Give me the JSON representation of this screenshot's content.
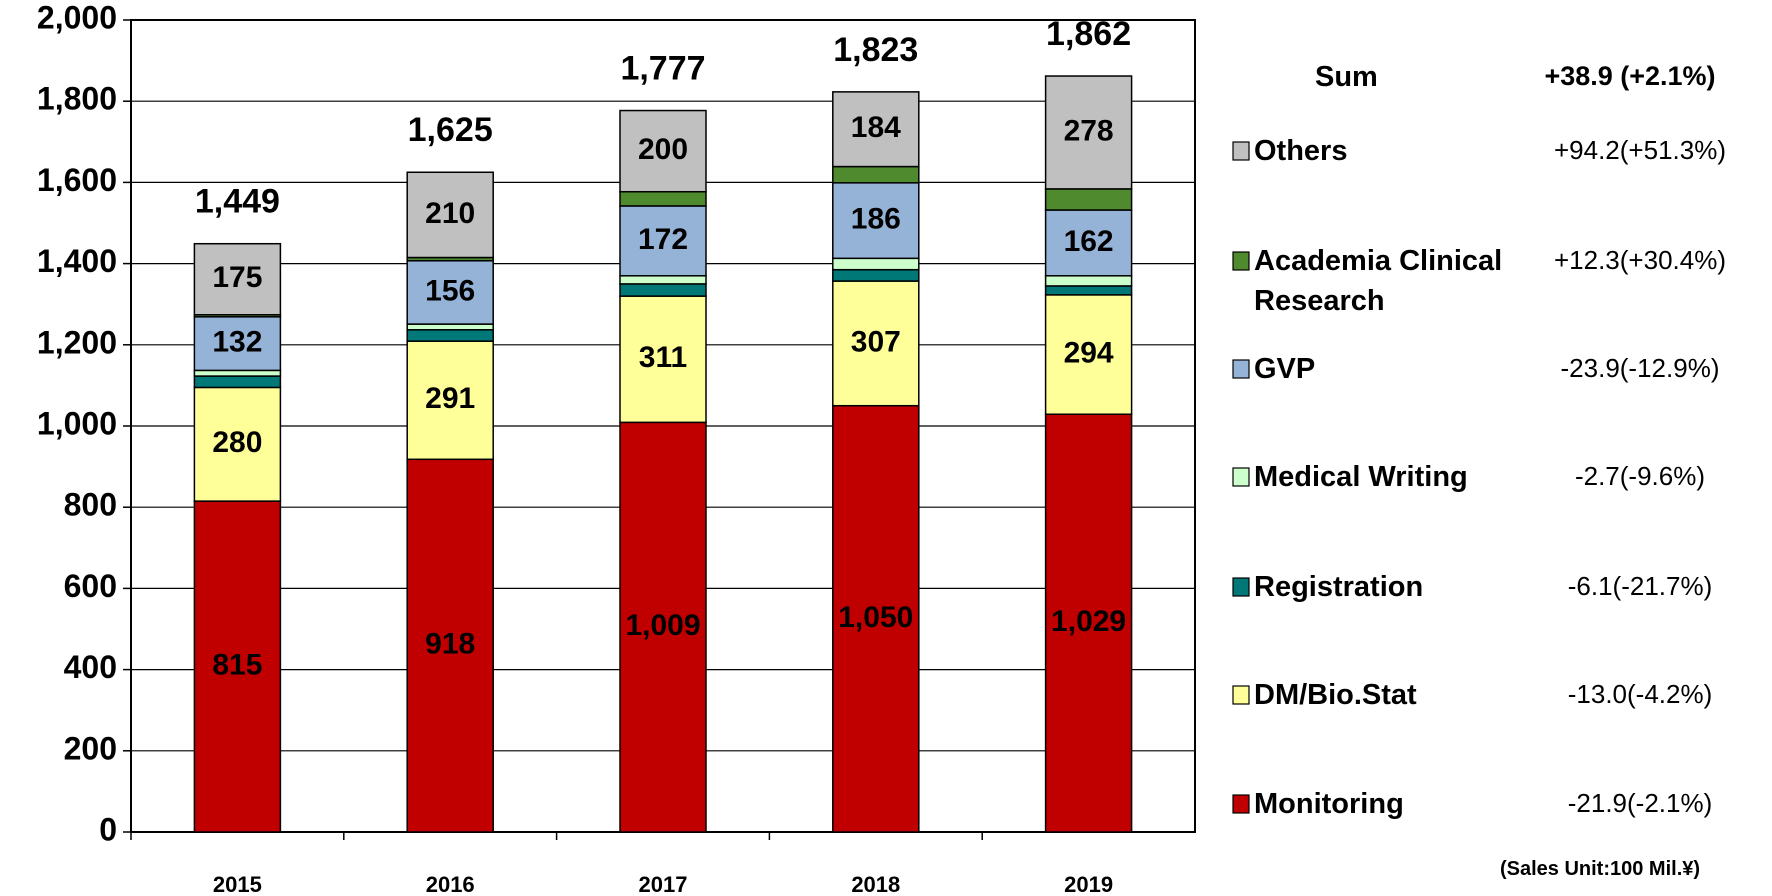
{
  "chart_data": {
    "type": "stacked_bar",
    "categories": [
      "2015",
      "2016",
      "2017",
      "2018",
      "2019"
    ],
    "series": [
      {
        "name": "Monitoring",
        "color": "#c00000",
        "values": [
          815,
          918,
          1009,
          1050,
          1029
        ],
        "value_labels": [
          "815",
          "918",
          "1,009",
          "1,050",
          "1,029"
        ],
        "change": "-21.9(-2.1%)"
      },
      {
        "name": "DM/Bio.Stat",
        "color": "#ffff99",
        "values": [
          280,
          291,
          311,
          307,
          294
        ],
        "change": "-13.0(-4.2%)"
      },
      {
        "name": "Registration",
        "color": "#007878",
        "values": [
          28,
          28,
          30,
          28,
          22
        ],
        "change": "-6.1(-21.7%)"
      },
      {
        "name": "Medical Writing",
        "color": "#ccffcc",
        "values": [
          14,
          14,
          20,
          28,
          25
        ],
        "change": "-2.7(-9.6%)"
      },
      {
        "name": "GVP",
        "color": "#95b3d7",
        "values": [
          132,
          156,
          172,
          186,
          162
        ],
        "change": "-23.9(-12.9%)"
      },
      {
        "name": "Academia Clinical Research",
        "color": "#4f8a2e",
        "values": [
          5,
          8,
          35,
          40,
          52
        ],
        "change": "+12.3(+30.4%)",
        "labeled": false
      },
      {
        "name": "Others",
        "color": "#c0c0c0",
        "values": [
          175,
          210,
          200,
          184,
          278
        ],
        "change": "+94.2(+51.3%)"
      }
    ],
    "labeled_series": [
      0,
      1,
      4,
      6
    ],
    "totals": [
      1449,
      1625,
      1777,
      1823,
      1862
    ],
    "total_labels": [
      "1,449",
      "1,625",
      "1,777",
      "1,823",
      "1,862"
    ],
    "sum_label": "Sum",
    "sum_change": "+38.9 (+2.1%)",
    "note": "(Sales Unit:100 Mil.¥)",
    "ylim": [
      0,
      2000
    ],
    "yticks": [
      0,
      200,
      400,
      600,
      800,
      {
        "value": 1000,
        "label": "1,000"
      },
      {
        "value": 1200,
        "label": "1,200"
      },
      {
        "value": 1400,
        "label": "1,400"
      },
      {
        "value": 1600,
        "label": "1,600"
      },
      {
        "value": 1800,
        "label": "1,800"
      },
      {
        "value": 2000,
        "label": "2,000"
      }
    ],
    "grid": true,
    "legend": "right"
  }
}
